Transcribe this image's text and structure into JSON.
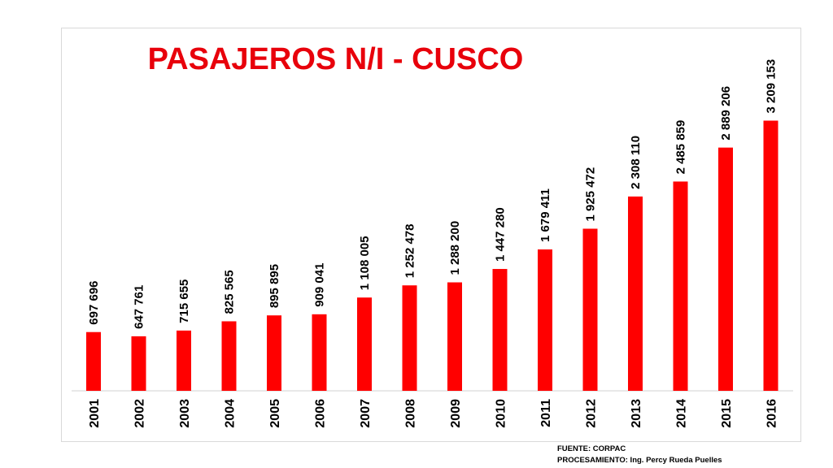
{
  "chart_data": {
    "type": "bar",
    "title": "PASAJEROS N/I - CUSCO",
    "categories": [
      "2001",
      "2002",
      "2003",
      "2004",
      "2005",
      "2006",
      "2007",
      "2008",
      "2009",
      "2010",
      "2011",
      "2012",
      "2013",
      "2014",
      "2015",
      "2016"
    ],
    "values": [
      697696,
      647761,
      715655,
      825565,
      895895,
      909041,
      1108005,
      1252478,
      1288200,
      1447280,
      1679411,
      1925472,
      2308110,
      2485859,
      2889206,
      3209153
    ],
    "value_labels": [
      "697 696",
      "647 761",
      "715 655",
      "825 565",
      "895 895",
      "909 041",
      "1 108 005",
      "1 252 478",
      "1 288 200",
      "1 447 280",
      "1 679 411",
      "1 925 472",
      "2 308 110",
      "2 485 859",
      "2 889 206",
      "3 209 153"
    ],
    "bar_color": "#ff0000",
    "title_color": "#e8000b",
    "ylim": [
      0,
      4150000
    ],
    "grid": false,
    "legend": "none"
  },
  "footer": {
    "source": "FUENTE: CORPAC",
    "processing": "PROCESAMIENTO: Ing. Percy Rueda Puelles"
  }
}
